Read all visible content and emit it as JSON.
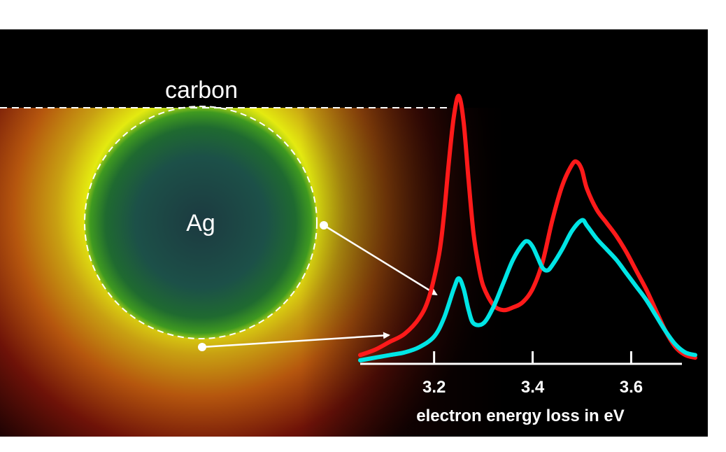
{
  "labels": {
    "top_medium": "carbon",
    "particle": "Ag"
  },
  "colors": {
    "background": "#000000",
    "boundary_line": "#ffffff",
    "arrow": "#ffffff",
    "axis": "#ffffff",
    "series_edge_point": "#ff1a1a",
    "series_bottom_point": "#00e5e5"
  },
  "chart_data": {
    "type": "line",
    "xlabel": "electron energy loss in eV",
    "ylabel": "",
    "xlim": [
      3.05,
      3.73
    ],
    "ylim": [
      0,
      1.0
    ],
    "x_ticks": [
      3.2,
      3.4,
      3.6
    ],
    "x_tick_labels": [
      "3.2",
      "3.4",
      "3.6"
    ],
    "series": [
      {
        "color": "#ff1a1a",
        "x": [
          3.05,
          3.08,
          3.11,
          3.14,
          3.17,
          3.19,
          3.21,
          3.22,
          3.23,
          3.24,
          3.25,
          3.26,
          3.27,
          3.28,
          3.29,
          3.3,
          3.32,
          3.34,
          3.36,
          3.38,
          3.4,
          3.42,
          3.44,
          3.46,
          3.48,
          3.49,
          3.5,
          3.51,
          3.53,
          3.55,
          3.57,
          3.59,
          3.61,
          3.63,
          3.65,
          3.67,
          3.69,
          3.71,
          3.73
        ],
        "y": [
          0.02,
          0.04,
          0.07,
          0.1,
          0.16,
          0.24,
          0.4,
          0.55,
          0.75,
          0.92,
          1.0,
          0.9,
          0.68,
          0.48,
          0.36,
          0.28,
          0.21,
          0.19,
          0.2,
          0.22,
          0.27,
          0.37,
          0.53,
          0.66,
          0.74,
          0.75,
          0.72,
          0.65,
          0.57,
          0.52,
          0.47,
          0.41,
          0.34,
          0.27,
          0.19,
          0.11,
          0.05,
          0.02,
          0.01
        ]
      },
      {
        "color": "#00e5e5",
        "x": [
          3.05,
          3.08,
          3.11,
          3.14,
          3.17,
          3.2,
          3.22,
          3.24,
          3.25,
          3.26,
          3.27,
          3.28,
          3.3,
          3.32,
          3.34,
          3.36,
          3.38,
          3.39,
          3.4,
          3.41,
          3.42,
          3.43,
          3.44,
          3.46,
          3.48,
          3.5,
          3.51,
          3.53,
          3.55,
          3.57,
          3.59,
          3.61,
          3.63,
          3.65,
          3.67,
          3.69,
          3.71,
          3.73
        ],
        "y": [
          0.0,
          0.01,
          0.02,
          0.03,
          0.05,
          0.09,
          0.16,
          0.27,
          0.31,
          0.27,
          0.19,
          0.14,
          0.14,
          0.2,
          0.29,
          0.38,
          0.44,
          0.45,
          0.43,
          0.39,
          0.35,
          0.34,
          0.36,
          0.42,
          0.49,
          0.53,
          0.51,
          0.46,
          0.42,
          0.38,
          0.33,
          0.28,
          0.23,
          0.17,
          0.11,
          0.06,
          0.03,
          0.02
        ]
      }
    ]
  }
}
